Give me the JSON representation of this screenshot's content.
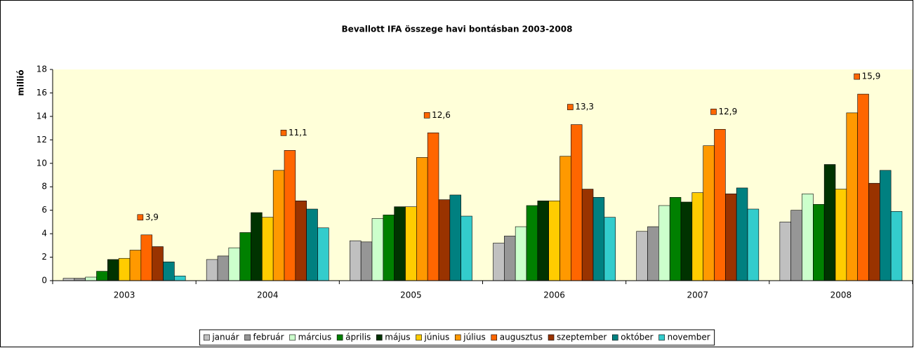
{
  "chart_data": {
    "type": "bar",
    "title": "Bevallott IFA összege havi bontásban 2003-2008",
    "y_label": "millió",
    "categories": [
      "2003",
      "2004",
      "2005",
      "2006",
      "2007",
      "2008"
    ],
    "series": [
      {
        "name": "január",
        "color": "#c0c0c0",
        "values": [
          0.2,
          1.8,
          3.4,
          3.2,
          4.2,
          5.0
        ]
      },
      {
        "name": "február",
        "color": "#969696",
        "values": [
          0.2,
          2.1,
          3.3,
          3.8,
          4.6,
          6.0
        ]
      },
      {
        "name": "március",
        "color": "#ccffcc",
        "values": [
          0.3,
          2.8,
          5.3,
          4.6,
          6.4,
          7.4
        ]
      },
      {
        "name": "április",
        "color": "#008000",
        "values": [
          0.8,
          4.1,
          5.6,
          6.4,
          7.1,
          6.5
        ]
      },
      {
        "name": "május",
        "color": "#003300",
        "values": [
          1.8,
          5.8,
          6.3,
          6.8,
          6.7,
          9.9
        ]
      },
      {
        "name": "június",
        "color": "#ffcc00",
        "values": [
          1.9,
          5.4,
          6.3,
          6.8,
          7.5,
          7.8
        ]
      },
      {
        "name": "július",
        "color": "#ff9900",
        "values": [
          2.6,
          9.4,
          10.5,
          10.6,
          11.5,
          14.3
        ]
      },
      {
        "name": "augusztus",
        "color": "#ff6600",
        "values": [
          3.9,
          11.1,
          12.6,
          13.3,
          12.9,
          15.9
        ],
        "value_labels": [
          "3,9",
          "11,1",
          "12,6",
          "13,3",
          "12,9",
          "15,9"
        ]
      },
      {
        "name": "szeptember",
        "color": "#993300",
        "values": [
          2.9,
          6.8,
          6.9,
          7.8,
          7.4,
          8.3
        ]
      },
      {
        "name": "október",
        "color": "#008080",
        "values": [
          1.6,
          6.1,
          7.3,
          7.1,
          7.9,
          9.4
        ]
      },
      {
        "name": "november",
        "color": "#33cccc",
        "values": [
          0.4,
          4.5,
          5.5,
          5.4,
          6.1,
          5.9
        ]
      }
    ],
    "ylim": [
      0,
      18
    ],
    "yticks": [
      0,
      2,
      4,
      6,
      8,
      10,
      12,
      14,
      16,
      18
    ],
    "grid": false,
    "legend": "bottom"
  }
}
